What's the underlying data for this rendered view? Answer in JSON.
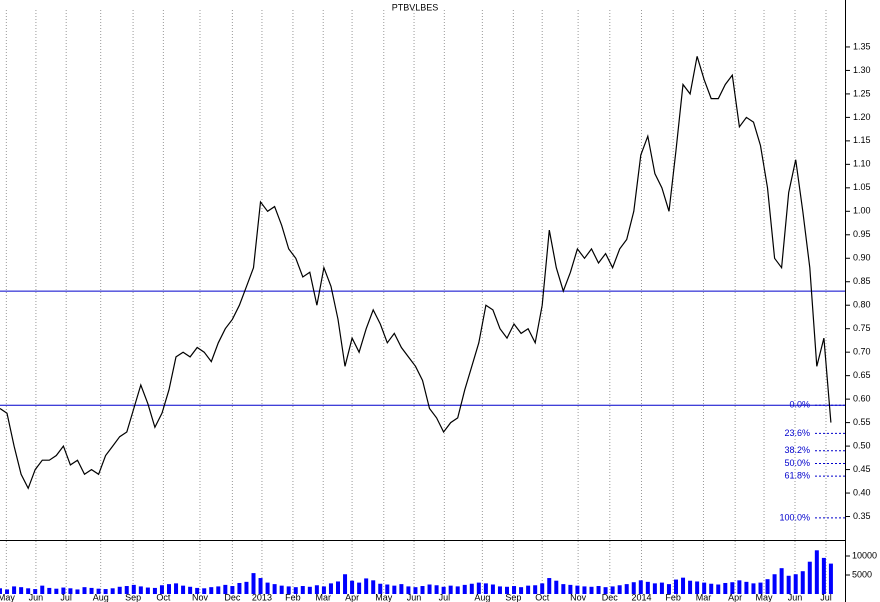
{
  "chart_data": {
    "type": "line",
    "title": "PTBVLBES",
    "x": [
      0,
      1,
      2,
      3,
      4,
      5,
      6,
      7,
      8,
      9,
      10,
      11,
      12,
      13,
      14,
      15,
      16,
      17,
      18,
      19,
      20,
      21,
      22,
      23,
      24,
      25,
      26,
      27,
      28,
      29,
      30,
      31,
      32,
      33,
      34,
      35,
      36,
      37,
      38,
      39,
      40,
      41,
      42,
      43,
      44,
      45,
      46,
      47,
      48,
      49,
      50,
      51,
      52,
      53,
      54,
      55,
      56,
      57,
      58,
      59,
      60,
      61,
      62,
      63,
      64,
      65,
      66,
      67,
      68,
      69,
      70,
      71,
      72,
      73,
      74,
      75,
      76,
      77,
      78,
      79,
      80,
      81,
      82,
      83,
      84,
      85,
      86,
      87,
      88,
      89,
      90,
      91,
      92,
      93,
      94,
      95,
      96,
      97,
      98,
      99,
      100,
      101,
      102,
      103,
      104,
      105,
      106,
      107,
      108,
      109,
      110,
      111,
      112,
      113,
      114,
      115,
      116,
      117,
      118
    ],
    "series": [
      {
        "name": "price",
        "color": "#000000",
        "values": [
          0.58,
          0.57,
          0.5,
          0.44,
          0.41,
          0.45,
          0.47,
          0.47,
          0.48,
          0.5,
          0.46,
          0.47,
          0.44,
          0.45,
          0.44,
          0.48,
          0.5,
          0.52,
          0.53,
          0.58,
          0.63,
          0.59,
          0.54,
          0.57,
          0.62,
          0.69,
          0.7,
          0.69,
          0.71,
          0.7,
          0.68,
          0.72,
          0.75,
          0.77,
          0.8,
          0.84,
          0.88,
          1.02,
          1.0,
          1.01,
          0.97,
          0.92,
          0.9,
          0.86,
          0.87,
          0.8,
          0.88,
          0.84,
          0.77,
          0.67,
          0.73,
          0.7,
          0.75,
          0.79,
          0.76,
          0.72,
          0.74,
          0.71,
          0.69,
          0.67,
          0.64,
          0.58,
          0.56,
          0.53,
          0.55,
          0.56,
          0.62,
          0.67,
          0.72,
          0.8,
          0.79,
          0.75,
          0.73,
          0.76,
          0.74,
          0.75,
          0.72,
          0.8,
          0.96,
          0.88,
          0.83,
          0.87,
          0.92,
          0.9,
          0.92,
          0.89,
          0.91,
          0.88,
          0.92,
          0.94,
          1.0,
          1.12,
          1.16,
          1.08,
          1.05,
          1.0,
          1.13,
          1.27,
          1.25,
          1.33,
          1.28,
          1.24,
          1.24,
          1.27,
          1.29,
          1.18,
          1.2,
          1.19,
          1.14,
          1.05,
          0.9,
          0.88,
          1.04,
          1.11,
          1.0,
          0.88,
          0.67,
          0.73,
          0.55
        ]
      }
    ],
    "volume": {
      "color": "#0000ff",
      "values": [
        1500,
        1200,
        2000,
        1800,
        1500,
        1300,
        2200,
        1600,
        1400,
        1700,
        1500,
        1200,
        1800,
        1600,
        1400,
        1300,
        1500,
        1900,
        2100,
        2400,
        2000,
        1700,
        1600,
        2300,
        2600,
        2800,
        2200,
        1900,
        1600,
        1500,
        1800,
        2000,
        2400,
        2100,
        2900,
        3200,
        5500,
        4200,
        3000,
        2600,
        2200,
        2000,
        1800,
        2100,
        1900,
        2300,
        2000,
        2800,
        3300,
        5200,
        3500,
        3000,
        4100,
        3600,
        2700,
        2500,
        2200,
        2600,
        2000,
        1800,
        2100,
        2500,
        2300,
        1900,
        2200,
        2000,
        2400,
        2700,
        3000,
        2800,
        2500,
        2000,
        1900,
        2100,
        1800,
        2200,
        2300,
        2800,
        4200,
        3500,
        2600,
        2400,
        2200,
        2000,
        1900,
        2100,
        1800,
        2000,
        2300,
        2600,
        3100,
        3600,
        3200,
        2800,
        3000,
        2600,
        3800,
        4300,
        3500,
        3300,
        3000,
        2700,
        2500,
        2900,
        3100,
        3600,
        3200,
        2800,
        3000,
        3900,
        5200,
        6800,
        4800,
        5200,
        6000,
        8500,
        11500,
        9500,
        8000
      ],
      "ylim": [
        0,
        13950
      ],
      "yticks": [
        5000,
        10000
      ]
    },
    "xlim": [
      0,
      120
    ],
    "xticks": [
      {
        "value": 0.9,
        "label": "May"
      },
      {
        "value": 5.1,
        "label": "Jun"
      },
      {
        "value": 9.4,
        "label": "Jul"
      },
      {
        "value": 14.3,
        "label": "Aug"
      },
      {
        "value": 18.9,
        "label": "Sep"
      },
      {
        "value": 23.2,
        "label": "Oct"
      },
      {
        "value": 28.4,
        "label": "Nov"
      },
      {
        "value": 33.0,
        "label": "Dec"
      },
      {
        "value": 37.2,
        "label": "2013"
      },
      {
        "value": 41.6,
        "label": "Feb"
      },
      {
        "value": 45.9,
        "label": "Mar"
      },
      {
        "value": 50.0,
        "label": "Apr"
      },
      {
        "value": 54.5,
        "label": "May"
      },
      {
        "value": 58.8,
        "label": "Jun"
      },
      {
        "value": 63.1,
        "label": "Jul"
      },
      {
        "value": 68.5,
        "label": "Aug"
      },
      {
        "value": 72.9,
        "label": "Sep"
      },
      {
        "value": 77.0,
        "label": "Oct"
      },
      {
        "value": 82.1,
        "label": "Nov"
      },
      {
        "value": 86.6,
        "label": "Dec"
      },
      {
        "value": 91.1,
        "label": "2014"
      },
      {
        "value": 95.6,
        "label": "Feb"
      },
      {
        "value": 99.9,
        "label": "Mar"
      },
      {
        "value": 104.4,
        "label": "Apr"
      },
      {
        "value": 108.5,
        "label": "May"
      },
      {
        "value": 112.9,
        "label": "Jun"
      },
      {
        "value": 117.3,
        "label": "Jul"
      }
    ],
    "ylim": [
      0.3,
      1.45
    ],
    "yticks": [
      {
        "value": 0.35,
        "label": "0.35"
      },
      {
        "value": 0.4,
        "label": "0.40"
      },
      {
        "value": 0.45,
        "label": "0.45"
      },
      {
        "value": 0.5,
        "label": "0.50"
      },
      {
        "value": 0.55,
        "label": "0.55"
      },
      {
        "value": 0.6,
        "label": "0.60"
      },
      {
        "value": 0.65,
        "label": "0.65"
      },
      {
        "value": 0.7,
        "label": "0.70"
      },
      {
        "value": 0.75,
        "label": "0.75"
      },
      {
        "value": 0.8,
        "label": "0.80"
      },
      {
        "value": 0.85,
        "label": "0.85"
      },
      {
        "value": 0.9,
        "label": "0.90"
      },
      {
        "value": 0.95,
        "label": "0.95"
      },
      {
        "value": 1.0,
        "label": "1.00"
      },
      {
        "value": 1.05,
        "label": "1.05"
      },
      {
        "value": 1.1,
        "label": "1.10"
      },
      {
        "value": 1.15,
        "label": "1.15"
      },
      {
        "value": 1.2,
        "label": "1.20"
      },
      {
        "value": 1.25,
        "label": "1.25"
      },
      {
        "value": 1.3,
        "label": "1.30"
      },
      {
        "value": 1.35,
        "label": "1.35"
      }
    ],
    "hlines": [
      0.83,
      0.587
    ],
    "hline_color": "#0000cc",
    "fib_levels": [
      {
        "label": "0.0%",
        "value": 0.587
      },
      {
        "label": "23.6%",
        "value": 0.527
      },
      {
        "label": "38.2%",
        "value": 0.49
      },
      {
        "label": "50.0%",
        "value": 0.463
      },
      {
        "label": "61.8%",
        "value": 0.436
      },
      {
        "label": "100.0%",
        "value": 0.347
      }
    ],
    "grid": true
  }
}
